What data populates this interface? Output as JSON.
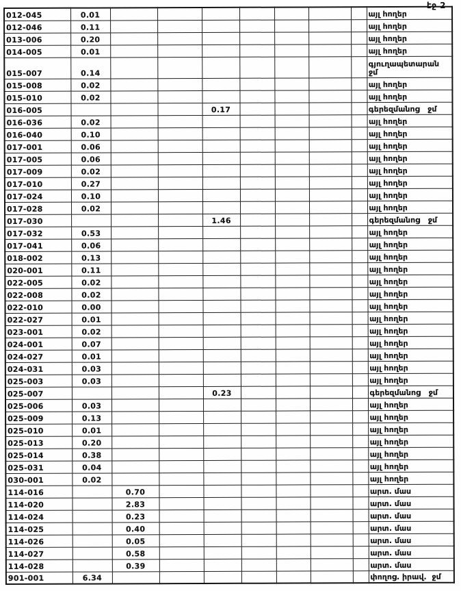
{
  "page": {
    "label": "էջ 2"
  },
  "table": {
    "rows": [
      {
        "cells": [
          "012-045",
          "0.01",
          "",
          "",
          "",
          "",
          "",
          "",
          "",
          "այլ հողեր"
        ]
      },
      {
        "cells": [
          "012-046",
          "0.11",
          "",
          "",
          "",
          "",
          "",
          "",
          "",
          "այլ հողեր"
        ]
      },
      {
        "cells": [
          "013-006",
          "0.20",
          "",
          "",
          "",
          "",
          "",
          "",
          "",
          "այլ հողեր"
        ]
      },
      {
        "cells": [
          "014-005",
          "0.01",
          "",
          "",
          "",
          "",
          "",
          "",
          "",
          "այլ հողեր"
        ]
      },
      {
        "cells": [
          "015-007",
          "0.14",
          "",
          "",
          "",
          "",
          "",
          "",
          "",
          "գյուղապետարան ջմ"
        ]
      },
      {
        "cells": [
          "015-008",
          "0.02",
          "",
          "",
          "",
          "",
          "",
          "",
          "",
          "այլ հողեր"
        ]
      },
      {
        "cells": [
          "015-010",
          "0.02",
          "",
          "",
          "",
          "",
          "",
          "",
          "",
          "այլ հողեր"
        ]
      },
      {
        "cells": [
          "016-005",
          "",
          "",
          "",
          "0.17",
          "",
          "",
          "",
          "",
          "գերեզմանոց   ջմ"
        ]
      },
      {
        "cells": [
          "016-036",
          "0.02",
          "",
          "",
          "",
          "",
          "",
          "",
          "",
          "այլ հողեր"
        ]
      },
      {
        "cells": [
          "016-040",
          "0.10",
          "",
          "",
          "",
          "",
          "",
          "",
          "",
          "այլ հողեր"
        ]
      },
      {
        "cells": [
          "017-001",
          "0.06",
          "",
          "",
          "",
          "",
          "",
          "",
          "",
          "այլ հողեր"
        ]
      },
      {
        "cells": [
          "017-005",
          "0.06",
          "",
          "",
          "",
          "",
          "",
          "",
          "",
          "այլ հողեր"
        ]
      },
      {
        "cells": [
          "017-009",
          "0.02",
          "",
          "",
          "",
          "",
          "",
          "",
          "",
          "այլ հողեր"
        ]
      },
      {
        "cells": [
          "017-010",
          "0.27",
          "",
          "",
          "",
          "",
          "",
          "",
          "",
          "այլ հողեր"
        ]
      },
      {
        "cells": [
          "017-024",
          "0.10",
          "",
          "",
          "",
          "",
          "",
          "",
          "",
          "այլ հողեր"
        ]
      },
      {
        "cells": [
          "017-028",
          "0.02",
          "",
          "",
          "",
          "",
          "",
          "",
          "",
          "այլ հողեր"
        ]
      },
      {
        "cells": [
          "017-030",
          "",
          "",
          "",
          "1.46",
          "",
          "",
          "",
          "",
          "գերեզմանոց   ջմ"
        ]
      },
      {
        "cells": [
          "017-032",
          "0.53",
          "",
          "",
          "",
          "",
          "",
          "",
          "",
          "այլ հողեր"
        ]
      },
      {
        "cells": [
          "017-041",
          "0.06",
          "",
          "",
          "",
          "",
          "",
          "",
          "",
          "այլ հողեր"
        ]
      },
      {
        "cells": [
          "018-002",
          "0.13",
          "",
          "",
          "",
          "",
          "",
          "",
          "",
          "այլ հողեր"
        ]
      },
      {
        "cells": [
          "020-001",
          "0.11",
          "",
          "",
          "",
          "",
          "",
          "",
          "",
          "այլ հողեր"
        ]
      },
      {
        "cells": [
          "022-005",
          "0.02",
          "",
          "",
          "",
          "",
          "",
          "",
          "",
          "այլ հողեր"
        ]
      },
      {
        "cells": [
          "022-008",
          "0.02",
          "",
          "",
          "",
          "",
          "",
          "",
          "",
          "այլ հողեր"
        ]
      },
      {
        "cells": [
          "022-010",
          "0.00",
          "",
          "",
          "",
          "",
          "",
          "",
          "",
          "այլ հողեր"
        ]
      },
      {
        "cells": [
          "022-027",
          "0.01",
          "",
          "",
          "",
          "",
          "",
          "",
          "",
          "այլ հողեր"
        ]
      },
      {
        "cells": [
          "023-001",
          "0.02",
          "",
          "",
          "",
          "",
          "",
          "",
          "",
          "այլ հողեր"
        ]
      },
      {
        "cells": [
          "024-001",
          "0.07",
          "",
          "",
          "",
          "",
          "",
          "",
          "",
          "այլ հողեր"
        ]
      },
      {
        "cells": [
          "024-027",
          "0.01",
          "",
          "",
          "",
          "",
          "",
          "",
          "",
          "այլ հողեր"
        ]
      },
      {
        "cells": [
          "024-031",
          "0.03",
          "",
          "",
          "",
          "",
          "",
          "",
          "",
          "այլ հողեր"
        ]
      },
      {
        "cells": [
          "025-003",
          "0.03",
          "",
          "",
          "",
          "",
          "",
          "",
          "",
          "այլ հողեր"
        ]
      },
      {
        "cells": [
          "025-007",
          "",
          "",
          "",
          "0.23",
          "",
          "",
          "",
          "",
          "գերեզմանոց   ջմ"
        ]
      },
      {
        "cells": [
          "025-006",
          "0.03",
          "",
          "",
          "",
          "",
          "",
          "",
          "",
          "այլ հողեր"
        ]
      },
      {
        "cells": [
          "025-009",
          "0.13",
          "",
          "",
          "",
          "",
          "",
          "",
          "",
          "այլ հողեր"
        ]
      },
      {
        "cells": [
          "025-010",
          "0.01",
          "",
          "",
          "",
          "",
          "",
          "",
          "",
          "այլ հողեր"
        ]
      },
      {
        "cells": [
          "025-013",
          "0.20",
          "",
          "",
          "",
          "",
          "",
          "",
          "",
          "այլ հողեր"
        ]
      },
      {
        "cells": [
          "025-014",
          "0.38",
          "",
          "",
          "",
          "",
          "",
          "",
          "",
          "այլ հողեր"
        ]
      },
      {
        "cells": [
          "025-031",
          "0.04",
          "",
          "",
          "",
          "",
          "",
          "",
          "",
          "այլ հողեր"
        ]
      },
      {
        "cells": [
          "030-001",
          "0.02",
          "",
          "",
          "",
          "",
          "",
          "",
          "",
          "այլ հողեր"
        ]
      },
      {
        "cells": [
          "114-016",
          "",
          "0.70",
          "",
          "",
          "",
          "",
          "",
          "",
          "արտ. մաս"
        ]
      },
      {
        "cells": [
          "114-020",
          "",
          "2.83",
          "",
          "",
          "",
          "",
          "",
          "",
          "արտ. մաս"
        ]
      },
      {
        "cells": [
          "114-024",
          "",
          "0.23",
          "",
          "",
          "",
          "",
          "",
          "",
          "արտ. մաս"
        ]
      },
      {
        "cells": [
          "114-025",
          "",
          "0.40",
          "",
          "",
          "",
          "",
          "",
          "",
          "արտ. մաս"
        ]
      },
      {
        "cells": [
          "114-026",
          "",
          "0.05",
          "",
          "",
          "",
          "",
          "",
          "",
          "արտ. մաս"
        ]
      },
      {
        "cells": [
          "114-027",
          "",
          "0.58",
          "",
          "",
          "",
          "",
          "",
          "",
          "արտ. մաս"
        ]
      },
      {
        "cells": [
          "114-028",
          "",
          "0.39",
          "",
          "",
          "",
          "",
          "",
          "",
          "արտ. մաս"
        ]
      },
      {
        "cells": [
          "901-001",
          "6.34",
          "",
          "",
          "",
          "",
          "",
          "",
          "",
          "փողոց. իրավ.  ջմ"
        ]
      }
    ]
  }
}
